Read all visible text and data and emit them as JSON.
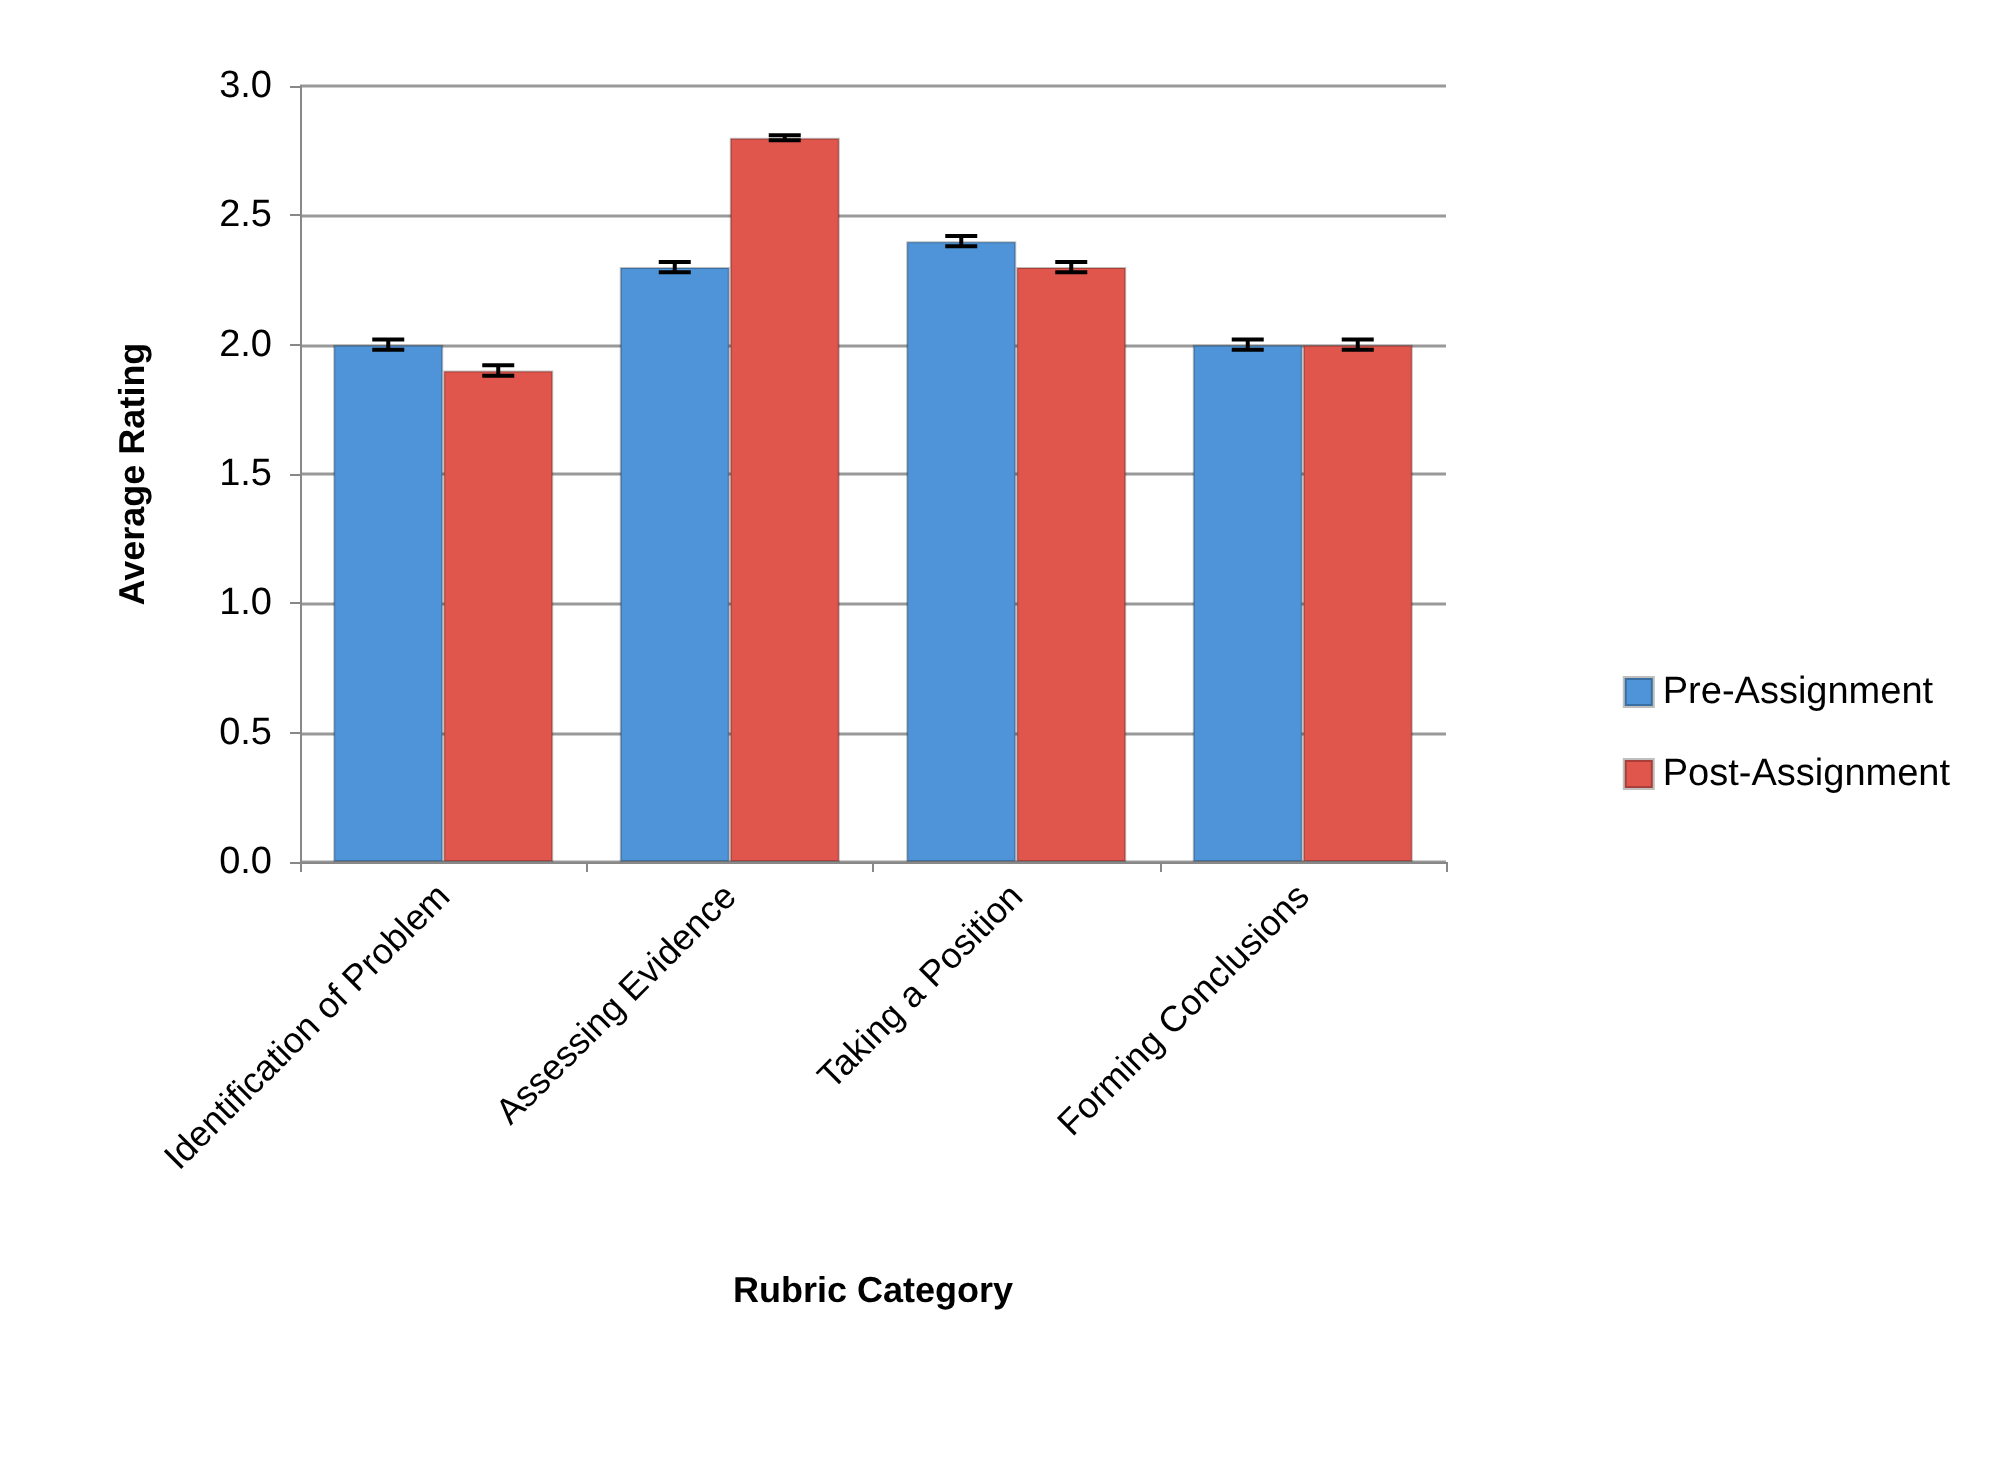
{
  "chart_data": {
    "type": "bar",
    "xlabel": "Rubric Category",
    "ylabel": "Average Rating",
    "categories": [
      "Identification of Problem",
      "Assessing Evidence",
      "Taking a Position",
      "Forming Conclusions"
    ],
    "series": [
      {
        "name": "Pre-Assignment",
        "color": "#4f94d8",
        "values": [
          2.0,
          2.3,
          2.4,
          2.0
        ],
        "errors": [
          0.02,
          0.02,
          0.02,
          0.02
        ]
      },
      {
        "name": "Post-Assignment",
        "color": "#e0564c",
        "values": [
          1.9,
          2.8,
          2.3,
          2.0
        ],
        "errors": [
          0.02,
          0.01,
          0.02,
          0.02
        ]
      }
    ],
    "ylim": [
      0,
      3
    ],
    "yticks": [
      {
        "value": 0,
        "label": "0.0"
      },
      {
        "value": 0.5,
        "label": "0.5"
      },
      {
        "value": 1,
        "label": "1.0"
      },
      {
        "value": 1.5,
        "label": "1.5"
      },
      {
        "value": 2,
        "label": "2.0"
      },
      {
        "value": 2.5,
        "label": "2.5"
      },
      {
        "value": 3,
        "label": "3.0"
      }
    ],
    "grid": "y",
    "legend": "right"
  }
}
